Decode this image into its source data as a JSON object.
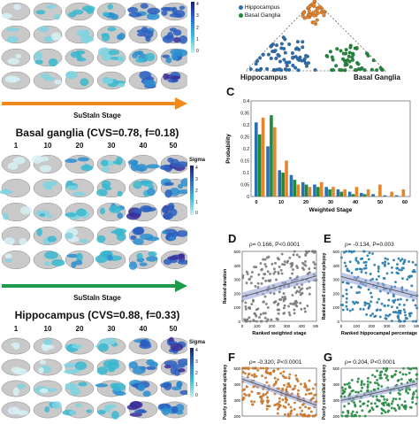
{
  "left": {
    "sustain_label": "SuStaIn Stage",
    "sections": [
      {
        "title": "Basal ganglia (CVS=0.78, f=0.18)",
        "stages": [
          "1",
          "10",
          "20",
          "30",
          "40",
          "50"
        ],
        "sigma_label": "Sigma",
        "cbar_ticks": [
          "4",
          "3",
          "2",
          "1",
          "0"
        ]
      },
      {
        "title": "Hippocampus (CVS=0.88, f=0.33)",
        "stages": [
          "1",
          "10",
          "20",
          "30",
          "40",
          "50"
        ],
        "sigma_label": "Sigma",
        "cbar_ticks": [
          "4",
          "3",
          "2",
          "1",
          "0"
        ]
      }
    ],
    "top_cbar_ticks": [
      "4",
      "3",
      "2",
      "1",
      "0"
    ],
    "arrow_colors": [
      "#f08a1c",
      "#1f9a4a"
    ]
  },
  "panel_b": {
    "legend": [
      {
        "label": "Hippocampus",
        "color": "#2a6fb0"
      },
      {
        "label": "Basal Ganglia",
        "color": "#1f8a3a"
      }
    ],
    "corner_labels": {
      "left": "Hippocampus",
      "right": "Basal Ganglia"
    },
    "colors": {
      "top": "#e8842a",
      "left": "#2a6fb0",
      "right": "#1f8a3a"
    }
  },
  "panel_c": {
    "letter": "C",
    "chart_data": {
      "type": "bar",
      "xlabel": "Weighted Stage",
      "ylabel": "Probability",
      "ylim": [
        0,
        0.4
      ],
      "yticks": [
        "0.4",
        "0.35",
        "0.3",
        "0.25",
        "0.2",
        "0.15",
        "0.1",
        "0.05",
        "0"
      ],
      "xticks": [
        "0",
        "10",
        "20",
        "30",
        "40",
        "50",
        "60"
      ],
      "categories": [
        "0",
        "5",
        "10",
        "15",
        "20",
        "25",
        "30",
        "35",
        "40",
        "45",
        "50",
        "55",
        "60"
      ],
      "series": [
        {
          "color": "#2a6fb0",
          "values": [
            0.31,
            0.21,
            0.11,
            0.09,
            0.06,
            0.05,
            0.04,
            0.03,
            0.02,
            0.015,
            0.01,
            0.005,
            0.005
          ]
        },
        {
          "color": "#1f8a3a",
          "values": [
            0.26,
            0.34,
            0.1,
            0.07,
            0.05,
            0.04,
            0.03,
            0.02,
            0.01,
            0.01,
            0.0,
            0.0,
            0.0
          ]
        },
        {
          "color": "#e8842a",
          "values": [
            0.33,
            0.29,
            0.15,
            0.05,
            0.04,
            0.06,
            0.04,
            0.03,
            0.04,
            0.03,
            0.05,
            0.02,
            0.03
          ]
        }
      ]
    }
  },
  "panel_d": {
    "letter": "D",
    "stats": "ρ= 0.166, P<0.0001",
    "xlabel": "Ranked weighted stage",
    "ylabel": "Ranked duration",
    "yticks": [
      "500",
      "400",
      "300",
      "200",
      "100",
      "0"
    ],
    "xticks": [
      "0",
      "100",
      "200",
      "300",
      "400",
      "500"
    ]
  },
  "panel_e": {
    "letter": "E",
    "stats": "ρ= -0.134, P=0.003",
    "xlabel": "Ranked hippocampal percentage",
    "ylabel": "Ranked well controlled epilepsy",
    "yticks": [
      "500",
      "400",
      "300",
      "200",
      "100",
      "0"
    ],
    "xticks": [
      "0",
      "100",
      "200",
      "300",
      "400",
      "500"
    ]
  },
  "panel_f": {
    "letter": "F",
    "stats": "ρ= -0.320, P<0.0001",
    "ylabel": "Poorly controlled epilepsy",
    "yticks": [
      "500",
      "400",
      "300",
      "200"
    ]
  },
  "panel_g": {
    "letter": "G",
    "stats": "ρ= 0.204, P<0.0001",
    "ylabel": "Poorly controlled epilepsy",
    "yticks": [
      "500",
      "400",
      "300",
      "200"
    ]
  }
}
